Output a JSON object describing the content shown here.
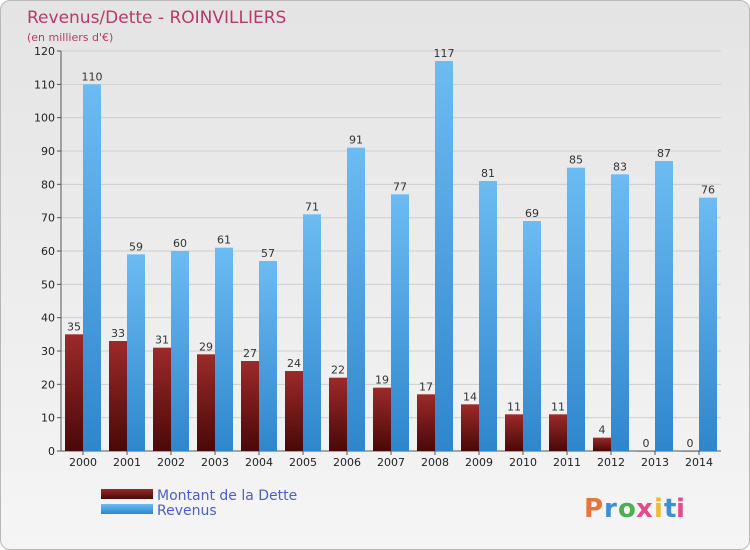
{
  "chart_data": {
    "type": "bar",
    "title": "Revenus/Dette - ROINVILLIERS",
    "subtitle": "(en milliers d'€)",
    "categories": [
      "2000",
      "2001",
      "2002",
      "2003",
      "2004",
      "2005",
      "2006",
      "2007",
      "2008",
      "2009",
      "2010",
      "2011",
      "2012",
      "2013",
      "2014"
    ],
    "series": [
      {
        "name": "Montant de la Dette",
        "color": "#7a1a1a",
        "values": [
          35,
          33,
          31,
          29,
          27,
          24,
          22,
          19,
          17,
          14,
          11,
          11,
          4,
          0,
          0
        ]
      },
      {
        "name": "Revenus",
        "color": "#4ca6e8",
        "values": [
          110,
          59,
          60,
          61,
          57,
          71,
          91,
          77,
          117,
          81,
          69,
          85,
          83,
          87,
          76
        ]
      }
    ],
    "yticks": [
      0,
      10,
      20,
      30,
      40,
      50,
      60,
      70,
      80,
      90,
      100,
      110,
      120
    ],
    "ylim": [
      0,
      120
    ],
    "grid": true,
    "legend_position": "bottom-left"
  },
  "branding": {
    "logo_letters": [
      "P",
      "r",
      "o",
      "x",
      "i",
      "t",
      "i"
    ]
  }
}
